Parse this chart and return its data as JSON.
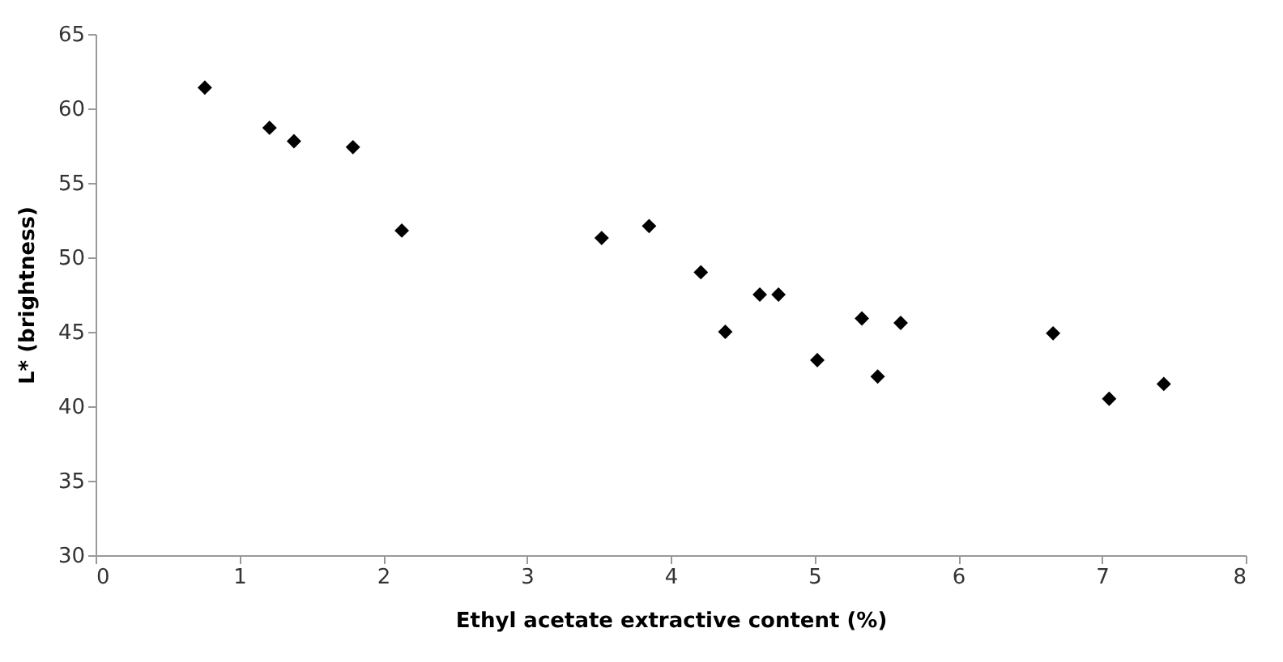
{
  "chart_data": {
    "type": "scatter",
    "xlabel": "Ethyl acetate extractive content (%)",
    "ylabel": "L* (brightness)",
    "x": [
      0.76,
      1.21,
      1.38,
      1.79,
      2.13,
      3.52,
      3.85,
      4.21,
      4.38,
      4.62,
      4.75,
      5.02,
      5.33,
      5.44,
      5.6,
      6.66,
      7.05,
      7.43
    ],
    "series": [
      {
        "color": "#000000",
        "values": [
          61.4,
          58.7,
          57.8,
          57.4,
          51.8,
          51.3,
          52.1,
          49.0,
          45.0,
          47.5,
          47.5,
          43.1,
          45.9,
          42.0,
          45.6,
          44.9,
          40.5,
          41.5
        ]
      }
    ],
    "xlim": [
      0,
      8
    ],
    "xticks": [
      0,
      1,
      2,
      3,
      4,
      5,
      6,
      7,
      8
    ],
    "ylim": [
      30,
      65
    ],
    "yticks": [
      30,
      35,
      40,
      45,
      50,
      55,
      60,
      65
    ],
    "grid": false,
    "marker": "diamond"
  }
}
